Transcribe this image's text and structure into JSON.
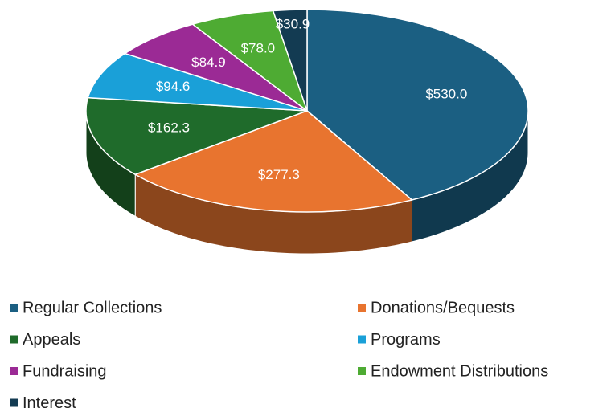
{
  "chart_data": {
    "type": "pie3d",
    "categories": [
      "Regular Collections",
      "Donations/Bequests",
      "Appeals",
      "Programs",
      "Fundraising",
      "Endowment Distributions",
      "Interest"
    ],
    "values": [
      530.0,
      277.3,
      162.3,
      94.6,
      84.9,
      78.0,
      30.9
    ],
    "value_labels": [
      "$530.0",
      "$277.3",
      "$162.3",
      "$94.6",
      "$84.9",
      "$78.0",
      "$30.9"
    ],
    "colors": [
      "#1b5f82",
      "#e8742f",
      "#1f6b2b",
      "#1aa0d8",
      "#9b2a95",
      "#4eab33",
      "#133b52"
    ],
    "legend": "bottom"
  }
}
